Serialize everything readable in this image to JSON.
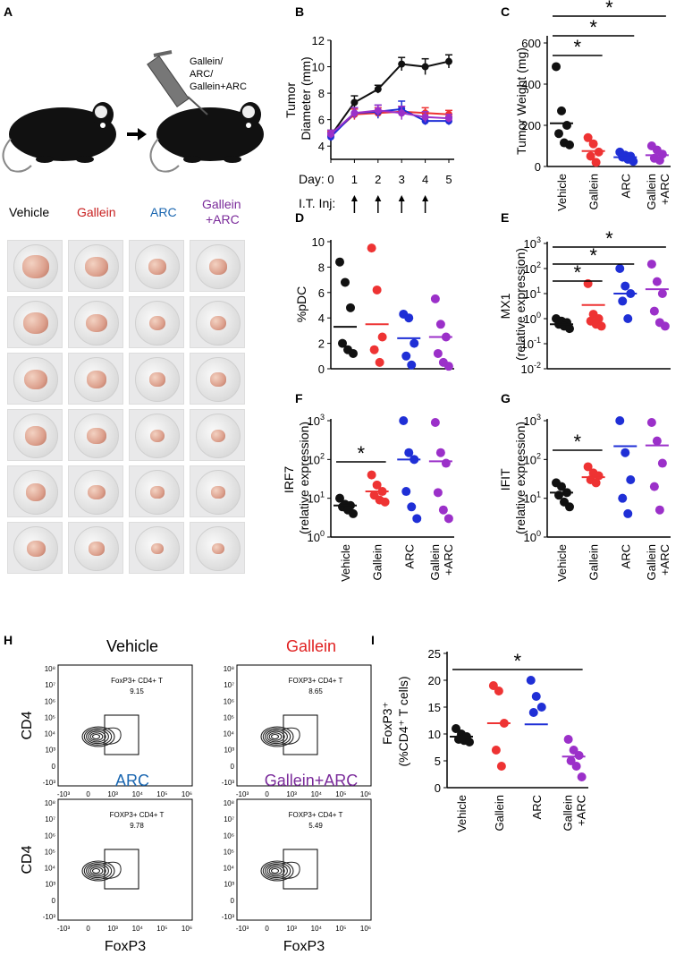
{
  "panel_labels": {
    "A": "A",
    "B": "B",
    "C": "C",
    "D": "D",
    "E": "E",
    "F": "F",
    "G": "G",
    "H": "H",
    "I": "I"
  },
  "colors": {
    "vehicle": "#111111",
    "gallein": "#ee3333",
    "arc": "#1f2fd6",
    "combo": "#9b30c9",
    "title_arc": "#1a66b0",
    "title_combo": "#7a2a9a"
  },
  "panelA": {
    "injection_label_lines": [
      "Gallein/",
      "ARC/",
      "Gallein+ARC"
    ],
    "group_titles": [
      "Vehicle",
      "Gallein",
      "ARC",
      "Gallein",
      "+ARC"
    ],
    "icons": [
      "mouse-icon",
      "arrow-right-icon",
      "syringe-icon",
      "tumor-photo-icon"
    ]
  },
  "panelB": {
    "ylabel_lines": [
      "Tumor",
      "Diameter (mm)"
    ],
    "day_label": "Day:",
    "inj_label": "I.T. Inj:",
    "x_ticks": [
      "0",
      "1",
      "2",
      "3",
      "4",
      "5"
    ],
    "y_ticks": [
      "4",
      "6",
      "8",
      "10",
      "12"
    ],
    "injection_days": [
      1,
      2,
      3,
      4
    ]
  },
  "panelC": {
    "ylabel": "Tumor Weight (mg)",
    "y_ticks": [
      "0",
      "200",
      "400",
      "600"
    ],
    "categories": [
      "Vehicle",
      "Gallein",
      "ARC",
      "Gallein",
      "+ARC"
    ],
    "star": "*"
  },
  "panelD": {
    "ylabel": "%pDC",
    "y_ticks": [
      "0",
      "2",
      "4",
      "6",
      "8",
      "10"
    ]
  },
  "panelE": {
    "ylabel_lines": [
      "MX1",
      "(relative expression)"
    ],
    "y_ticks": [
      "10-2",
      "10-1",
      "100",
      "101",
      "102",
      "103"
    ]
  },
  "panelF": {
    "ylabel_lines": [
      "IRF7",
      "(relative expression)"
    ],
    "y_ticks": [
      "100",
      "101",
      "102",
      "103"
    ]
  },
  "panelG": {
    "ylabel_lines": [
      "IFIT",
      "(relative expression)"
    ],
    "y_ticks": [
      "100",
      "101",
      "102",
      "103"
    ]
  },
  "xcat_labels": {
    "vehicle": "Vehicle",
    "gallein": "Gallein",
    "arc": "ARC",
    "combo_line1": "Gallein",
    "combo_line2": "+ARC"
  },
  "panelH": {
    "plots": [
      {
        "title": "Vehicle",
        "gate": "FoxP3+ CD4+ T",
        "value": "9.15"
      },
      {
        "title": "Gallein",
        "gate": "FOXP3+ CD4+ T",
        "value": "8.65"
      },
      {
        "title": "ARC",
        "gate": "FOXP3+ CD4+ T",
        "value": "9.78"
      },
      {
        "title": "Gallein+ARC",
        "gate": "FOXP3+ CD4+ T",
        "value": "5.49"
      }
    ],
    "ylabel": "CD4",
    "xlabel": "FoxP3",
    "y_ticks": [
      "10⁸",
      "10⁷",
      "10⁶",
      "10⁵",
      "10⁴",
      "10³",
      "0",
      "-10³"
    ],
    "x_ticks": [
      "-10³",
      "0",
      "10³",
      "10⁴",
      "10⁵",
      "10⁶"
    ]
  },
  "panelI": {
    "ylabel_lines": [
      "FoxP3⁺",
      "(%CD4⁺ T cells)"
    ],
    "y_ticks": [
      "0",
      "5",
      "10",
      "15",
      "20",
      "25"
    ]
  },
  "chart_data": [
    {
      "id": "B",
      "type": "line",
      "title": "",
      "xlabel": "Day",
      "ylabel": "Tumor Diameter (mm)",
      "x": [
        0,
        1,
        2,
        3,
        4,
        5
      ],
      "xlim": [
        0,
        5
      ],
      "ylim": [
        3,
        12
      ],
      "series": [
        {
          "name": "Vehicle",
          "values": [
            4.8,
            7.3,
            8.3,
            10.2,
            10.0,
            10.4
          ],
          "err": [
            0.4,
            0.5,
            0.3,
            0.5,
            0.6,
            0.5
          ]
        },
        {
          "name": "Gallein",
          "values": [
            4.8,
            6.4,
            6.5,
            6.6,
            6.5,
            6.4
          ],
          "err": [
            0.3,
            0.4,
            0.4,
            0.4,
            0.4,
            0.3
          ]
        },
        {
          "name": "ARC",
          "values": [
            4.7,
            6.5,
            6.6,
            6.8,
            5.9,
            5.9
          ],
          "err": [
            0.3,
            0.4,
            0.5,
            0.6,
            0.3,
            0.3
          ]
        },
        {
          "name": "Gallein+ARC",
          "values": [
            4.9,
            6.5,
            6.7,
            6.5,
            6.2,
            6.1
          ],
          "err": [
            0.3,
            0.4,
            0.4,
            0.5,
            0.4,
            0.3
          ]
        }
      ]
    },
    {
      "id": "C",
      "type": "scatter",
      "ylabel": "Tumor Weight (mg)",
      "ylim": [
        0,
        600
      ],
      "categories": [
        "Vehicle",
        "Gallein",
        "ARC",
        "Gallein+ARC"
      ],
      "points": [
        [
          485,
          270,
          200,
          160,
          115,
          105
        ],
        [
          140,
          110,
          70,
          50,
          20
        ],
        [
          70,
          55,
          50,
          45,
          35,
          25
        ],
        [
          100,
          80,
          60,
          40,
          30
        ]
      ],
      "means": [
        210,
        75,
        45,
        55
      ],
      "significance": [
        [
          "Vehicle",
          "Gallein"
        ],
        [
          "Vehicle",
          "ARC"
        ],
        [
          "Vehicle",
          "Gallein+ARC"
        ]
      ]
    },
    {
      "id": "D",
      "type": "scatter",
      "ylabel": "%pDC",
      "ylim": [
        0,
        10
      ],
      "categories": [
        "Vehicle",
        "Gallein",
        "ARC",
        "Gallein+ARC"
      ],
      "points": [
        [
          8.4,
          6.8,
          4.8,
          2.0,
          1.5,
          1.2
        ],
        [
          9.5,
          6.2,
          2.5,
          1.5,
          0.5
        ],
        [
          4.3,
          4.0,
          2.0,
          1.0,
          0.3
        ],
        [
          5.5,
          3.5,
          2.5,
          1.2,
          0.5,
          0.2
        ]
      ],
      "means": [
        3.3,
        3.5,
        2.4,
        2.5
      ]
    },
    {
      "id": "E",
      "type": "scatter",
      "ylabel": "MX1 (relative expression)",
      "yscale": "log",
      "ylim": [
        0.01,
        1000
      ],
      "categories": [
        "Vehicle",
        "Gallein",
        "ARC",
        "Gallein+ARC"
      ],
      "points": [
        [
          1.0,
          0.8,
          0.7,
          0.6,
          0.5,
          0.4
        ],
        [
          25,
          1.5,
          1.0,
          0.8,
          0.6,
          0.5
        ],
        [
          100,
          20,
          10,
          5,
          1.0
        ],
        [
          150,
          30,
          10,
          2.0,
          0.7,
          0.5
        ]
      ],
      "means": [
        0.6,
        3.5,
        10,
        15
      ],
      "significance": [
        [
          "Vehicle",
          "Gallein"
        ],
        [
          "Vehicle",
          "ARC"
        ],
        [
          "Vehicle",
          "Gallein+ARC"
        ]
      ]
    },
    {
      "id": "F",
      "type": "scatter",
      "ylabel": "IRF7 (relative expression)",
      "yscale": "log",
      "ylim": [
        1,
        1000
      ],
      "categories": [
        "Vehicle",
        "Gallein",
        "ARC",
        "Gallein+ARC"
      ],
      "points": [
        [
          10,
          7,
          6.5,
          6,
          5,
          4
        ],
        [
          40,
          22,
          15,
          12,
          9,
          8
        ],
        [
          1000,
          150,
          100,
          15,
          6,
          3
        ],
        [
          900,
          150,
          80,
          14,
          5,
          3
        ]
      ],
      "means": [
        6.5,
        15,
        100,
        90
      ],
      "significance": [
        [
          "Vehicle",
          "Gallein"
        ]
      ]
    },
    {
      "id": "G",
      "type": "scatter",
      "ylabel": "IFIT (relative expression)",
      "yscale": "log",
      "ylim": [
        1,
        1000
      ],
      "categories": [
        "Vehicle",
        "Gallein",
        "ARC",
        "Gallein+ARC"
      ],
      "points": [
        [
          25,
          20,
          14,
          12,
          8,
          6
        ],
        [
          65,
          45,
          38,
          30,
          25
        ],
        [
          1000,
          150,
          30,
          10,
          4
        ],
        [
          900,
          300,
          80,
          20,
          5
        ]
      ],
      "means": [
        14,
        35,
        220,
        230
      ],
      "significance": [
        [
          "Vehicle",
          "Gallein"
        ]
      ]
    },
    {
      "id": "I",
      "type": "scatter",
      "ylabel": "FoxP3+ (%CD4+ T cells)",
      "ylim": [
        0,
        25
      ],
      "categories": [
        "Vehicle",
        "Gallein",
        "ARC",
        "Gallein+ARC"
      ],
      "points": [
        [
          11,
          10,
          9.5,
          9,
          8.8,
          8.5
        ],
        [
          19,
          18,
          12,
          7,
          4
        ],
        [
          20,
          17,
          15,
          14
        ],
        [
          9,
          7,
          6,
          5,
          4,
          2
        ]
      ],
      "means": [
        9.5,
        12,
        11.8,
        5.8
      ],
      "significance": [
        [
          "Vehicle",
          "Gallein+ARC"
        ]
      ]
    }
  ]
}
